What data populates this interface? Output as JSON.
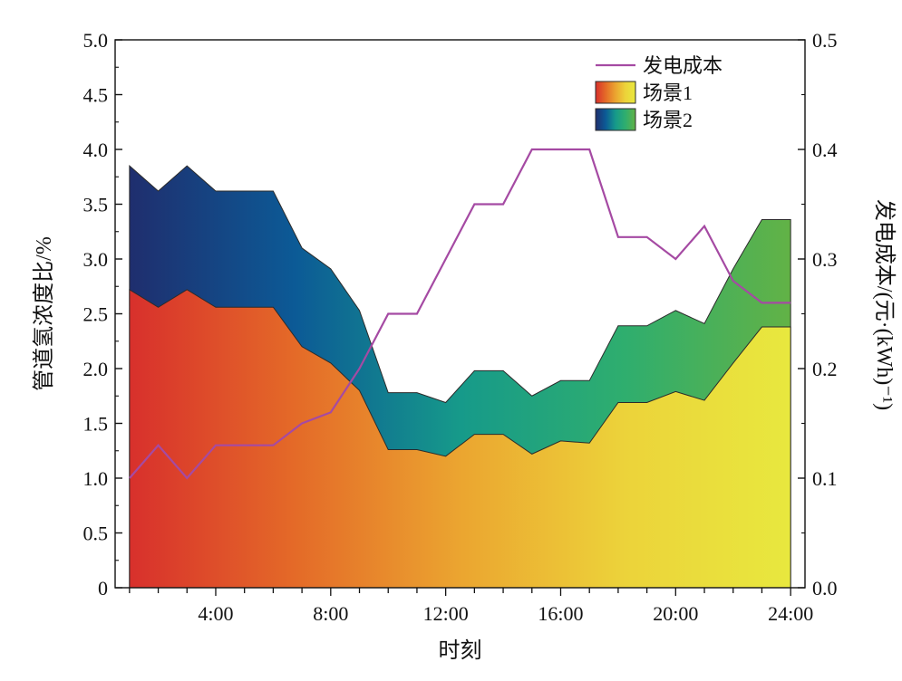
{
  "chart_data": {
    "type": "area",
    "title": "",
    "xlabel": "时刻",
    "ylabel": "管道氢浓度比/%",
    "y2label": "发电成本/(元·(kWh)⁻¹)",
    "x": [
      1,
      2,
      3,
      4,
      5,
      6,
      7,
      8,
      9,
      10,
      11,
      12,
      13,
      14,
      15,
      16,
      17,
      18,
      19,
      20,
      21,
      22,
      23,
      24
    ],
    "xlim": [
      0.5,
      24.5
    ],
    "xticks": [
      4,
      8,
      12,
      16,
      20,
      24
    ],
    "xtick_labels": [
      "4:00",
      "8:00",
      "12:00",
      "16:00",
      "20:00",
      "24:00"
    ],
    "ylim": [
      0,
      5.0
    ],
    "yticks": [
      "0",
      "0.5",
      "1.0",
      "1.5",
      "2.0",
      "2.5",
      "3.0",
      "3.5",
      "4.0",
      "4.5",
      "5.0"
    ],
    "y2lim": [
      0,
      0.5
    ],
    "y2ticks": [
      "0.0",
      "0.1",
      "0.2",
      "0.3",
      "0.4",
      "0.5"
    ],
    "legend_position": "top-right",
    "series": [
      {
        "name": "场景2",
        "kind": "area",
        "axis": "left",
        "gradient": [
          "#1f2e6e",
          "#0c5a96",
          "#169a8a",
          "#2fae6e",
          "#62b246"
        ],
        "values": [
          3.85,
          3.62,
          3.85,
          3.62,
          3.62,
          3.62,
          3.1,
          2.91,
          2.53,
          1.78,
          1.78,
          1.69,
          1.98,
          1.98,
          1.75,
          1.89,
          1.89,
          2.39,
          2.39,
          2.53,
          2.41,
          2.91,
          3.36,
          3.36
        ]
      },
      {
        "name": "场景1",
        "kind": "area",
        "axis": "left",
        "gradient": [
          "#d8302c",
          "#e46a28",
          "#eba530",
          "#ecd33a",
          "#e8e83e"
        ],
        "values": [
          2.72,
          2.56,
          2.72,
          2.56,
          2.56,
          2.56,
          2.2,
          2.05,
          1.8,
          1.26,
          1.26,
          1.2,
          1.4,
          1.4,
          1.22,
          1.34,
          1.32,
          1.69,
          1.69,
          1.79,
          1.71,
          2.05,
          2.38,
          2.38
        ]
      },
      {
        "name": "发电成本",
        "kind": "line",
        "axis": "right",
        "color": "#a54aa3",
        "values": [
          0.1,
          0.13,
          0.1,
          0.13,
          0.13,
          0.13,
          0.15,
          0.16,
          0.2,
          0.25,
          0.25,
          0.3,
          0.35,
          0.35,
          0.4,
          0.4,
          0.4,
          0.32,
          0.32,
          0.3,
          0.33,
          0.28,
          0.26,
          0.26
        ]
      }
    ]
  }
}
